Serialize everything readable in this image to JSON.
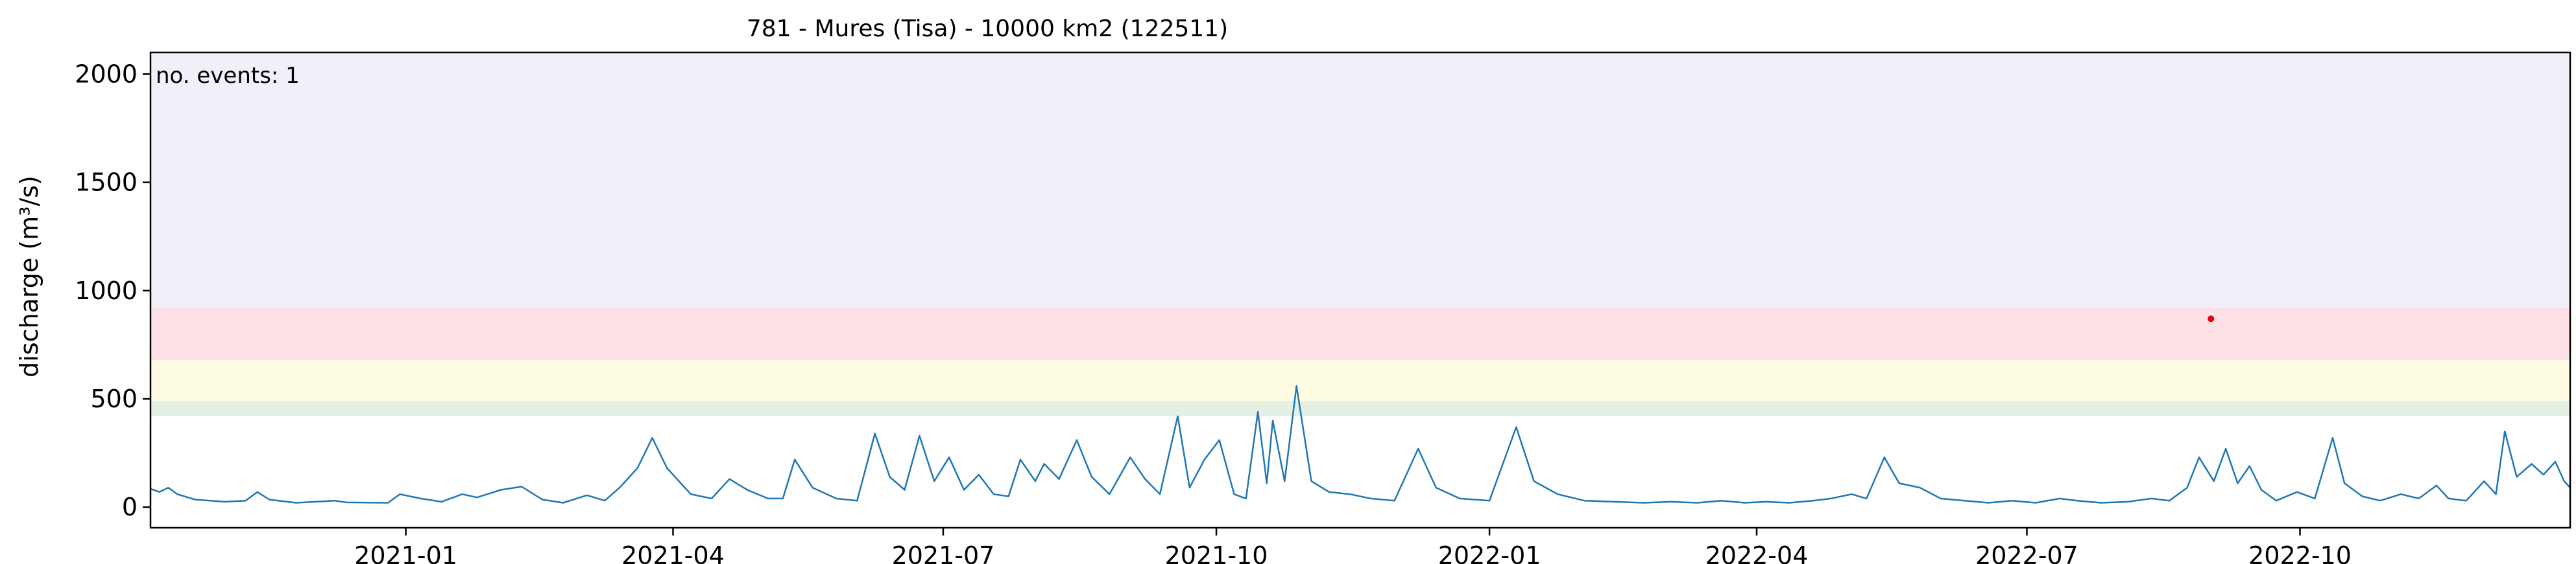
{
  "chart_data": {
    "type": "line",
    "title": "781 - Mures (Tisa) - 10000 km2 (122511)",
    "xlabel": "",
    "ylabel": "discharge (m³/s)",
    "ylim": [
      -95,
      2100
    ],
    "xlim": [
      "2020-10-07",
      "2022-12-31"
    ],
    "y_ticks": [
      0,
      500,
      1000,
      1500,
      2000
    ],
    "x_ticks": [
      "2021-01",
      "2021-04",
      "2021-07",
      "2021-10",
      "2022-01",
      "2022-04",
      "2022-07",
      "2022-10"
    ],
    "grid": false,
    "annotation": {
      "text": "no. events: 1",
      "color": "#e8000b"
    },
    "threshold_bands": [
      {
        "from": 420,
        "to": 490,
        "color": "#e3f0e3"
      },
      {
        "from": 490,
        "to": 680,
        "color": "#fefde3"
      },
      {
        "from": 680,
        "to": 920,
        "color": "#fde1e6"
      },
      {
        "from": 920,
        "to": 2100,
        "color": "#f2eff9"
      }
    ],
    "series": [
      {
        "color": "#1f77b4",
        "points": [
          [
            "2020-10-07",
            85
          ],
          [
            "2020-10-10",
            70
          ],
          [
            "2020-10-13",
            90
          ],
          [
            "2020-10-16",
            60
          ],
          [
            "2020-10-22",
            35
          ],
          [
            "2020-11-01",
            25
          ],
          [
            "2020-11-08",
            30
          ],
          [
            "2020-11-12",
            70
          ],
          [
            "2020-11-16",
            35
          ],
          [
            "2020-11-25",
            20
          ],
          [
            "2020-12-08",
            30
          ],
          [
            "2020-12-12",
            22
          ],
          [
            "2020-12-26",
            20
          ],
          [
            "2020-12-30",
            60
          ],
          [
            "2021-01-06",
            40
          ],
          [
            "2021-01-13",
            25
          ],
          [
            "2021-01-20",
            60
          ],
          [
            "2021-01-25",
            45
          ],
          [
            "2021-02-02",
            80
          ],
          [
            "2021-02-09",
            95
          ],
          [
            "2021-02-16",
            35
          ],
          [
            "2021-02-23",
            20
          ],
          [
            "2021-03-03",
            55
          ],
          [
            "2021-03-09",
            30
          ],
          [
            "2021-03-14",
            90
          ],
          [
            "2021-03-20",
            180
          ],
          [
            "2021-03-25",
            320
          ],
          [
            "2021-03-30",
            180
          ],
          [
            "2021-04-07",
            60
          ],
          [
            "2021-04-14",
            40
          ],
          [
            "2021-04-20",
            130
          ],
          [
            "2021-04-26",
            80
          ],
          [
            "2021-05-03",
            40
          ],
          [
            "2021-05-08",
            40
          ],
          [
            "2021-05-12",
            220
          ],
          [
            "2021-05-18",
            90
          ],
          [
            "2021-05-26",
            40
          ],
          [
            "2021-06-02",
            30
          ],
          [
            "2021-06-08",
            340
          ],
          [
            "2021-06-13",
            140
          ],
          [
            "2021-06-18",
            80
          ],
          [
            "2021-06-23",
            330
          ],
          [
            "2021-06-28",
            120
          ],
          [
            "2021-07-03",
            230
          ],
          [
            "2021-07-08",
            80
          ],
          [
            "2021-07-13",
            150
          ],
          [
            "2021-07-18",
            60
          ],
          [
            "2021-07-23",
            50
          ],
          [
            "2021-07-27",
            220
          ],
          [
            "2021-08-01",
            120
          ],
          [
            "2021-08-04",
            200
          ],
          [
            "2021-08-09",
            130
          ],
          [
            "2021-08-15",
            310
          ],
          [
            "2021-08-20",
            140
          ],
          [
            "2021-08-26",
            60
          ],
          [
            "2021-09-02",
            230
          ],
          [
            "2021-09-07",
            130
          ],
          [
            "2021-09-12",
            60
          ],
          [
            "2021-09-18",
            420
          ],
          [
            "2021-09-22",
            90
          ],
          [
            "2021-09-27",
            220
          ],
          [
            "2021-10-02",
            310
          ],
          [
            "2021-10-07",
            60
          ],
          [
            "2021-10-11",
            40
          ],
          [
            "2021-10-15",
            440
          ],
          [
            "2021-10-18",
            110
          ],
          [
            "2021-10-20",
            400
          ],
          [
            "2021-10-24",
            120
          ],
          [
            "2021-10-28",
            560
          ],
          [
            "2021-11-02",
            120
          ],
          [
            "2021-11-08",
            70
          ],
          [
            "2021-11-15",
            60
          ],
          [
            "2021-11-22",
            40
          ],
          [
            "2021-11-30",
            30
          ],
          [
            "2021-12-08",
            270
          ],
          [
            "2021-12-14",
            90
          ],
          [
            "2021-12-22",
            40
          ],
          [
            "2022-01-01",
            30
          ],
          [
            "2022-01-10",
            370
          ],
          [
            "2022-01-16",
            120
          ],
          [
            "2022-01-24",
            60
          ],
          [
            "2022-02-02",
            30
          ],
          [
            "2022-02-12",
            25
          ],
          [
            "2022-02-22",
            20
          ],
          [
            "2022-03-03",
            25
          ],
          [
            "2022-03-12",
            20
          ],
          [
            "2022-03-20",
            30
          ],
          [
            "2022-03-28",
            20
          ],
          [
            "2022-04-04",
            25
          ],
          [
            "2022-04-12",
            20
          ],
          [
            "2022-04-20",
            30
          ],
          [
            "2022-04-26",
            40
          ],
          [
            "2022-05-03",
            60
          ],
          [
            "2022-05-08",
            40
          ],
          [
            "2022-05-14",
            230
          ],
          [
            "2022-05-19",
            110
          ],
          [
            "2022-05-26",
            90
          ],
          [
            "2022-06-02",
            40
          ],
          [
            "2022-06-10",
            30
          ],
          [
            "2022-06-18",
            20
          ],
          [
            "2022-06-26",
            30
          ],
          [
            "2022-07-04",
            20
          ],
          [
            "2022-07-12",
            40
          ],
          [
            "2022-07-18",
            30
          ],
          [
            "2022-07-26",
            20
          ],
          [
            "2022-08-04",
            25
          ],
          [
            "2022-08-12",
            40
          ],
          [
            "2022-08-18",
            30
          ],
          [
            "2022-08-24",
            90
          ],
          [
            "2022-08-28",
            230
          ],
          [
            "2022-09-02",
            120
          ],
          [
            "2022-09-06",
            270
          ],
          [
            "2022-09-10",
            110
          ],
          [
            "2022-09-14",
            190
          ],
          [
            "2022-09-18",
            80
          ],
          [
            "2022-09-23",
            30
          ],
          [
            "2022-09-30",
            70
          ],
          [
            "2022-10-06",
            40
          ],
          [
            "2022-10-12",
            320
          ],
          [
            "2022-10-16",
            110
          ],
          [
            "2022-10-22",
            50
          ],
          [
            "2022-10-28",
            30
          ],
          [
            "2022-11-04",
            60
          ],
          [
            "2022-11-10",
            40
          ],
          [
            "2022-11-16",
            100
          ],
          [
            "2022-11-20",
            40
          ],
          [
            "2022-11-26",
            30
          ],
          [
            "2022-12-02",
            120
          ],
          [
            "2022-12-06",
            60
          ],
          [
            "2022-12-09",
            350
          ],
          [
            "2022-12-13",
            140
          ],
          [
            "2022-12-18",
            200
          ],
          [
            "2022-12-22",
            150
          ],
          [
            "2022-12-26",
            210
          ],
          [
            "2022-12-29",
            120
          ],
          [
            "2022-12-31",
            90
          ]
        ]
      }
    ],
    "events": [
      {
        "x": "2022-09-01",
        "y": 870,
        "color": "#e8000b"
      }
    ]
  }
}
